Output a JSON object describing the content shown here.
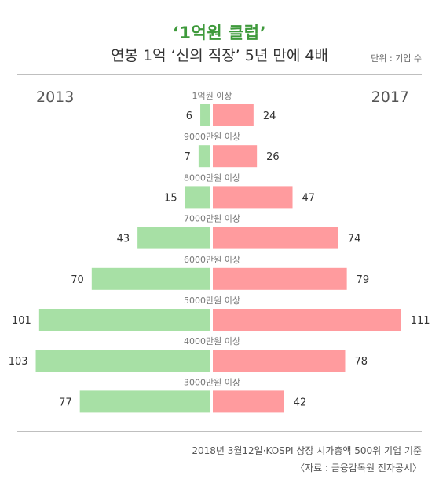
{
  "header": {
    "title": "‘1억원 클럽’",
    "subtitle": "연봉 1억 ‘신의 직장’ 5년 만에 4배",
    "unit": "단위 : 기업 수"
  },
  "chart_data": {
    "type": "bar",
    "orientation": "butterfly",
    "categories": [
      "1억원 이상",
      "9000만원 이상",
      "8000만원 이상",
      "7000만원 이상",
      "6000만원 이상",
      "5000만원 이상",
      "4000만원 이상",
      "3000만원 이상"
    ],
    "series": [
      {
        "name": "2013",
        "values": [
          6,
          7,
          15,
          43,
          70,
          101,
          103,
          77
        ],
        "color": "#a7e0a5",
        "side": "left"
      },
      {
        "name": "2017",
        "values": [
          24,
          26,
          47,
          74,
          79,
          111,
          78,
          42
        ],
        "color": "#ff9b9e",
        "side": "right"
      }
    ]
  },
  "footer": {
    "note": "2018년 3월12일·KOSPI 상장 시가총액 500위 기업 기준",
    "source": "〈자료 : 금융감독원 전자공시〉"
  }
}
